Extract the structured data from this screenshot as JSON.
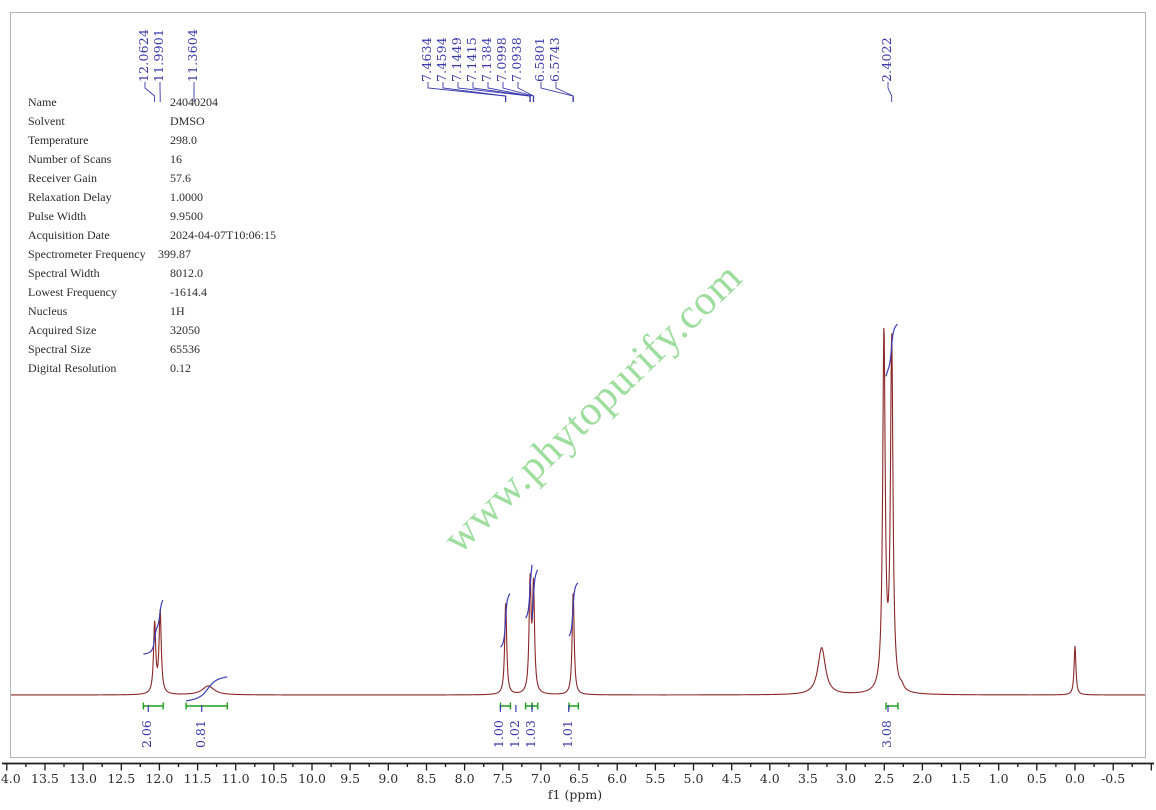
{
  "watermark": {
    "text": "www.phytopurify.com",
    "color": "#8ed88e"
  },
  "parameters": [
    {
      "label": "Name",
      "value": "24040204"
    },
    {
      "label": "Solvent",
      "value": "DMSO"
    },
    {
      "label": "Temperature",
      "value": "298.0"
    },
    {
      "label": "Number of Scans",
      "value": "16"
    },
    {
      "label": "Receiver Gain",
      "value": "57.6"
    },
    {
      "label": "Relaxation Delay",
      "value": "1.0000"
    },
    {
      "label": "Pulse Width",
      "value": "9.9500"
    },
    {
      "label": "Acquisition Date",
      "value": "2024-04-07T10:06:15"
    },
    {
      "label": "Spectrometer Frequency",
      "value": "399.87"
    },
    {
      "label": "Spectral Width",
      "value": "8012.0"
    },
    {
      "label": "Lowest Frequency",
      "value": "-1614.4"
    },
    {
      "label": "Nucleus",
      "value": "1H"
    },
    {
      "label": "Acquired Size",
      "value": "32050"
    },
    {
      "label": "Spectral Size",
      "value": "65536"
    },
    {
      "label": "Digital Resolution",
      "value": "0.12"
    }
  ],
  "chart_data": {
    "type": "line",
    "title": "",
    "xlabel": "f1 (ppm)",
    "x_axis_ticks": [
      "14.0",
      "13.5",
      "13.0",
      "12.5",
      "12.0",
      "11.5",
      "11.0",
      "10.5",
      "10.0",
      "9.5",
      "9.0",
      "8.5",
      "8.0",
      "7.5",
      "7.0",
      "6.5",
      "6.0",
      "5.5",
      "5.0",
      "4.5",
      "4.0",
      "3.5",
      "3.0",
      "2.5",
      "2.0",
      "1.5",
      "1.0",
      "0.5",
      "0.0",
      "-0.5"
    ],
    "x_range": [
      14.05,
      -1.0
    ],
    "x_direction": "reversed",
    "peak_labels": [
      "12.0624",
      "11.9901",
      "11.3604",
      "7.4634",
      "7.4594",
      "7.1449",
      "7.1415",
      "7.1384",
      "7.0998",
      "7.0938",
      "6.5801",
      "6.5743",
      "2.4022"
    ],
    "peaks": [
      {
        "ppm": 12.0624,
        "intensity": 70,
        "width": 1.3
      },
      {
        "ppm": 11.9901,
        "intensity": 82,
        "width": 1.3
      },
      {
        "ppm": 11.3604,
        "intensity": 9,
        "width": 7.0
      },
      {
        "ppm": 7.4614,
        "intensity": 92,
        "width": 1.2
      },
      {
        "ppm": 7.1415,
        "intensity": 110,
        "width": 1.2
      },
      {
        "ppm": 7.0968,
        "intensity": 105,
        "width": 1.2
      },
      {
        "ppm": 6.5772,
        "intensity": 103,
        "width": 1.2
      },
      {
        "ppm": 3.32,
        "intensity": 47,
        "width": 4.5
      },
      {
        "ppm": 2.504,
        "intensity": 358,
        "width": 1.5
      },
      {
        "ppm": 2.4022,
        "intensity": 350,
        "width": 1.5
      },
      {
        "ppm": 2.27,
        "intensity": 4,
        "width": 2.0
      },
      {
        "ppm": 0.0,
        "intensity": 49,
        "width": 1.1
      }
    ],
    "integrals": [
      {
        "value": "2.06",
        "from": 12.21,
        "to": 11.95
      },
      {
        "value": "0.81",
        "from": 11.65,
        "to": 11.11
      },
      {
        "value": "1.00",
        "from": 7.53,
        "to": 7.4
      },
      {
        "value": "1.02",
        "from": 7.2,
        "to": 7.115
      },
      {
        "value": "1.03",
        "from": 7.115,
        "to": 7.04
      },
      {
        "value": "1.01",
        "from": 6.63,
        "to": 6.51
      },
      {
        "value": "3.08",
        "from": 2.477,
        "to": 2.32
      }
    ],
    "colors": {
      "trace": "#8b2727",
      "integral_curve": "#3c3cb4",
      "integral_bracket": "#1da11d",
      "labels": "#3939ac",
      "axis": "#1a1a1a",
      "border": "#b5b5b5"
    }
  }
}
